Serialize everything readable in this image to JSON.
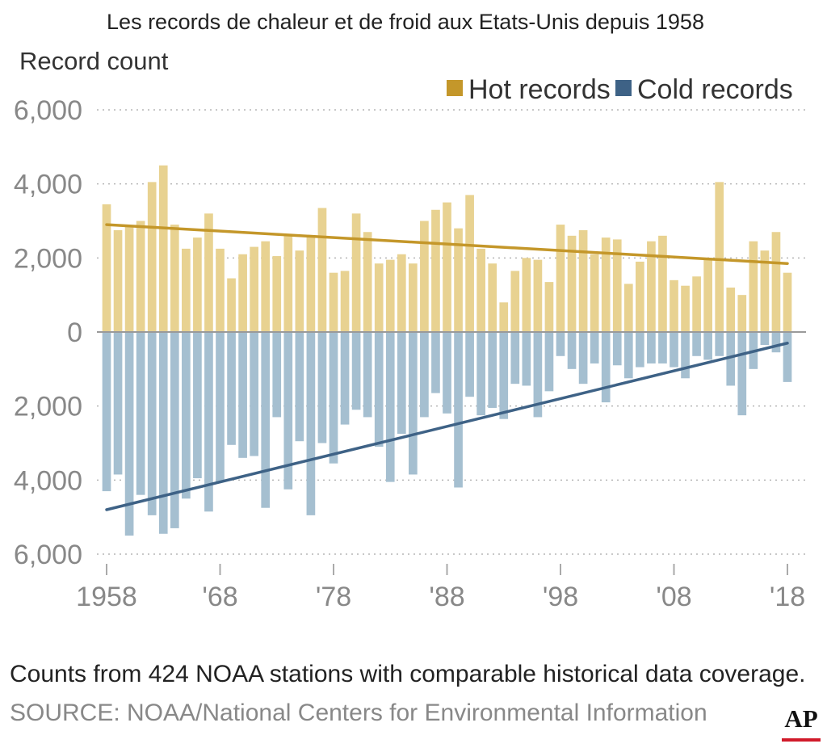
{
  "chart_data": {
    "type": "bar",
    "title": "Les records de chaleur et de froid aux Etats-Unis depuis 1958",
    "ylabel": "Record count",
    "ylim": [
      -6000,
      6000
    ],
    "yticks": [
      6000,
      4000,
      2000,
      0,
      -2000,
      -4000,
      -6000
    ],
    "ytick_labels": [
      "6,000",
      "4,000",
      "2,000",
      "0",
      "2,000",
      "4,000",
      "6,000"
    ],
    "xlim": [
      1958,
      2018
    ],
    "xticks": [
      1958,
      1968,
      1978,
      1988,
      1998,
      2008,
      2018
    ],
    "xtick_labels": [
      "1958",
      "'68",
      "'78",
      "'88",
      "'98",
      "'08",
      "'18"
    ],
    "grid": true,
    "legend_position": "top-right",
    "x": [
      1958,
      1959,
      1960,
      1961,
      1962,
      1963,
      1964,
      1965,
      1966,
      1967,
      1968,
      1969,
      1970,
      1971,
      1972,
      1973,
      1974,
      1975,
      1976,
      1977,
      1978,
      1979,
      1980,
      1981,
      1982,
      1983,
      1984,
      1985,
      1986,
      1987,
      1988,
      1989,
      1990,
      1991,
      1992,
      1993,
      1994,
      1995,
      1996,
      1997,
      1998,
      1999,
      2000,
      2001,
      2002,
      2003,
      2004,
      2005,
      2006,
      2007,
      2008,
      2009,
      2010,
      2011,
      2012,
      2013,
      2014,
      2015,
      2016,
      2017,
      2018
    ],
    "series": [
      {
        "name": "Hot records",
        "color": "#e8d291",
        "trend_color": "#c4972a",
        "trend": [
          2900,
          1850
        ],
        "values": [
          3450,
          2750,
          2850,
          3000,
          4050,
          4500,
          2900,
          2250,
          2550,
          3200,
          2250,
          1450,
          2100,
          2300,
          2450,
          2050,
          2600,
          2200,
          2600,
          3350,
          1600,
          1650,
          3200,
          2700,
          1850,
          1950,
          2100,
          1850,
          3000,
          3300,
          3500,
          2800,
          3700,
          2250,
          1850,
          800,
          1650,
          2000,
          1950,
          1350,
          2900,
          2600,
          2750,
          2100,
          2550,
          2500,
          1300,
          1900,
          2450,
          2600,
          1400,
          1250,
          1500,
          1950,
          4050,
          1200,
          1000,
          2450,
          2200,
          2700,
          1600
        ]
      },
      {
        "name": "Cold records",
        "color": "#a5bfd0",
        "trend_color": "#3e6286",
        "trend": [
          -4800,
          -300
        ],
        "values": [
          -4300,
          -3850,
          -5500,
          -4400,
          -4950,
          -5450,
          -5300,
          -4500,
          -3950,
          -4850,
          -4050,
          -3050,
          -3400,
          -3350,
          -4750,
          -2300,
          -4250,
          -2950,
          -4950,
          -3000,
          -3550,
          -2500,
          -2100,
          -2300,
          -3100,
          -4050,
          -2750,
          -3850,
          -2300,
          -1650,
          -2200,
          -4200,
          -1750,
          -2250,
          -2050,
          -2350,
          -1400,
          -1450,
          -2300,
          -1600,
          -650,
          -1000,
          -1400,
          -850,
          -1900,
          -900,
          -1250,
          -950,
          -850,
          -850,
          -950,
          -1250,
          -650,
          -750,
          -650,
          -1450,
          -2250,
          -1000,
          -350,
          -550,
          -1350
        ]
      }
    ],
    "footnote": "Counts from 424 NOAA stations with comparable historical data coverage.",
    "source": "SOURCE: NOAA/National Centers for Environmental Information"
  },
  "logo": {
    "text": "AP",
    "accent_color": "#d11a2a"
  }
}
